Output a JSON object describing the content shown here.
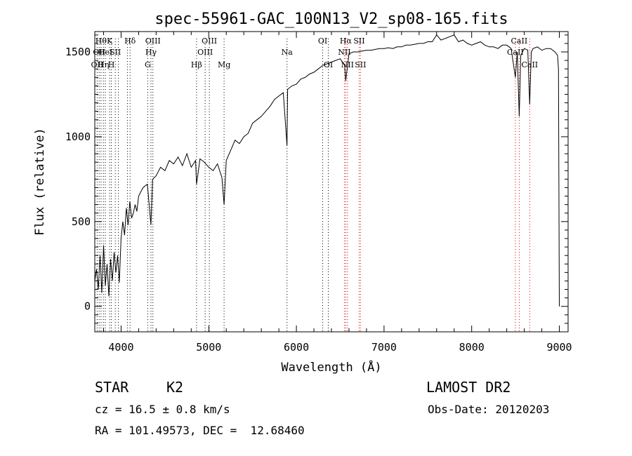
{
  "chart_data": {
    "type": "line",
    "title": "spec-55961-GAC_100N13_V2_sp08-165.fits",
    "xlabel": "Wavelength (Å)",
    "ylabel": "Flux (relative)",
    "xlim": [
      3700,
      9100
    ],
    "ylim": [
      -150,
      1620
    ],
    "xticks": [
      4000,
      5000,
      6000,
      7000,
      8000,
      9000
    ],
    "xtick_labels": [
      "4000",
      "5000",
      "6000",
      "7000",
      "8000",
      "9000"
    ],
    "yticks": [
      0,
      500,
      1000,
      1500
    ],
    "ytick_labels": [
      "0",
      "500",
      "1000",
      "1500"
    ],
    "grid": false,
    "series": [
      {
        "x": [
          3700,
          3720,
          3740,
          3760,
          3780,
          3800,
          3820,
          3840,
          3860,
          3880,
          3900,
          3920,
          3940,
          3960,
          3980,
          4000,
          4020,
          4040,
          4060,
          4080,
          4100,
          4120,
          4140,
          4160,
          4180,
          4200,
          4250,
          4300,
          4340,
          4360,
          4400,
          4450,
          4500,
          4550,
          4600,
          4650,
          4700,
          4750,
          4800,
          4850,
          4861,
          4900,
          4950,
          5000,
          5050,
          5100,
          5150,
          5175,
          5200,
          5250,
          5300,
          5350,
          5400,
          5450,
          5500,
          5550,
          5600,
          5650,
          5700,
          5750,
          5800,
          5850,
          5893,
          5900,
          5950,
          6000,
          6050,
          6100,
          6150,
          6200,
          6250,
          6300,
          6350,
          6400,
          6450,
          6500,
          6550,
          6563,
          6600,
          6650,
          6700,
          6750,
          6800,
          6850,
          6900,
          6950,
          7000,
          7050,
          7100,
          7150,
          7200,
          7250,
          7300,
          7350,
          7400,
          7450,
          7500,
          7550,
          7600,
          7650,
          7700,
          7750,
          7800,
          7850,
          7900,
          7950,
          8000,
          8050,
          8100,
          8150,
          8200,
          8250,
          8300,
          8350,
          8400,
          8450,
          8498,
          8520,
          8542,
          8560,
          8600,
          8640,
          8662,
          8680,
          8700,
          8750,
          8800,
          8850,
          8900,
          8950,
          8980,
          8990,
          9000
        ],
        "y": [
          150,
          220,
          100,
          300,
          80,
          360,
          120,
          250,
          60,
          280,
          150,
          320,
          200,
          300,
          140,
          400,
          500,
          420,
          580,
          480,
          620,
          520,
          550,
          600,
          560,
          650,
          700,
          720,
          480,
          750,
          770,
          820,
          800,
          860,
          840,
          880,
          830,
          900,
          820,
          860,
          720,
          870,
          850,
          820,
          800,
          840,
          760,
          600,
          860,
          920,
          980,
          960,
          1000,
          1020,
          1080,
          1100,
          1120,
          1150,
          1180,
          1220,
          1240,
          1260,
          950,
          1280,
          1300,
          1310,
          1340,
          1350,
          1370,
          1380,
          1400,
          1420,
          1430,
          1440,
          1450,
          1460,
          1420,
          1330,
          1490,
          1500,
          1500,
          1505,
          1510,
          1510,
          1515,
          1520,
          1520,
          1525,
          1520,
          1530,
          1530,
          1540,
          1540,
          1545,
          1550,
          1550,
          1560,
          1560,
          1600,
          1570,
          1580,
          1590,
          1600,
          1560,
          1570,
          1550,
          1540,
          1550,
          1560,
          1540,
          1530,
          1530,
          1520,
          1540,
          1540,
          1520,
          1350,
          1500,
          1120,
          1480,
          1520,
          1510,
          1190,
          1500,
          1520,
          1530,
          1510,
          1520,
          1520,
          1500,
          1480,
          1400,
          0
        ]
      }
    ],
    "lines": [
      {
        "wl": 3727,
        "label": "OII",
        "row": 2,
        "color": "#000000"
      },
      {
        "wl": 3750,
        "label": "OII",
        "row": 1,
        "color": "#000000"
      },
      {
        "wl": 3771,
        "label": "Hθ",
        "row": 0,
        "color": "#000000"
      },
      {
        "wl": 3798,
        "label": "Hη",
        "row": 2,
        "color": "#000000"
      },
      {
        "wl": 3820,
        "label": "HeI",
        "row": 1,
        "color": "#000000"
      },
      {
        "wl": 3869,
        "label": "K",
        "row": 0,
        "color": "#000000"
      },
      {
        "wl": 3889,
        "label": "H",
        "row": 2,
        "color": "#000000"
      },
      {
        "wl": 3934,
        "label": "SII",
        "row": 1,
        "color": "#000000"
      },
      {
        "wl": 3969,
        "label": "",
        "row": 0,
        "color": "#000000"
      },
      {
        "wl": 4072,
        "label": "",
        "row": 0,
        "color": "#000000"
      },
      {
        "wl": 4102,
        "label": "Hδ",
        "row": 0,
        "color": "#000000"
      },
      {
        "wl": 4304,
        "label": "G",
        "row": 2,
        "color": "#000000"
      },
      {
        "wl": 4341,
        "label": "Hγ",
        "row": 1,
        "color": "#000000"
      },
      {
        "wl": 4363,
        "label": "OIII",
        "row": 0,
        "color": "#000000"
      },
      {
        "wl": 4861,
        "label": "Hβ",
        "row": 2,
        "color": "#000000"
      },
      {
        "wl": 4959,
        "label": "OIII",
        "row": 1,
        "color": "#000000"
      },
      {
        "wl": 5007,
        "label": "OIII",
        "row": 0,
        "color": "#000000"
      },
      {
        "wl": 5175,
        "label": "Mg",
        "row": 2,
        "color": "#000000"
      },
      {
        "wl": 5893,
        "label": "Na",
        "row": 1,
        "color": "#000000"
      },
      {
        "wl": 6300,
        "label": "OI",
        "row": 0,
        "color": "#000000"
      },
      {
        "wl": 6364,
        "label": "OI",
        "row": 2,
        "color": "#000000"
      },
      {
        "wl": 6548,
        "label": "NII",
        "row": 1,
        "color": "#cc0000"
      },
      {
        "wl": 6563,
        "label": "Hα",
        "row": 0,
        "color": "#cc0000"
      },
      {
        "wl": 6583,
        "label": "NII",
        "row": 2,
        "color": "#cc0000"
      },
      {
        "wl": 6716,
        "label": "SII",
        "row": 0,
        "color": "#cc0000"
      },
      {
        "wl": 6731,
        "label": "SII",
        "row": 2,
        "color": "#cc0000"
      },
      {
        "wl": 8498,
        "label": "CaII",
        "row": 1,
        "color": "#cc0000"
      },
      {
        "wl": 8542,
        "label": "CaII",
        "row": 0,
        "color": "#cc0000"
      },
      {
        "wl": 8662,
        "label": "CaII",
        "row": 2,
        "color": "#cc0000"
      }
    ]
  },
  "info": {
    "class_label": "STAR",
    "subclass_label": "K2",
    "cz_text": "cz = 16.5 ± 0.8 km/s",
    "coords_text": "RA = 101.49573, DEC =  12.68460",
    "survey": "LAMOST DR2",
    "obs_date_text": "Obs-Date: 20120203"
  }
}
